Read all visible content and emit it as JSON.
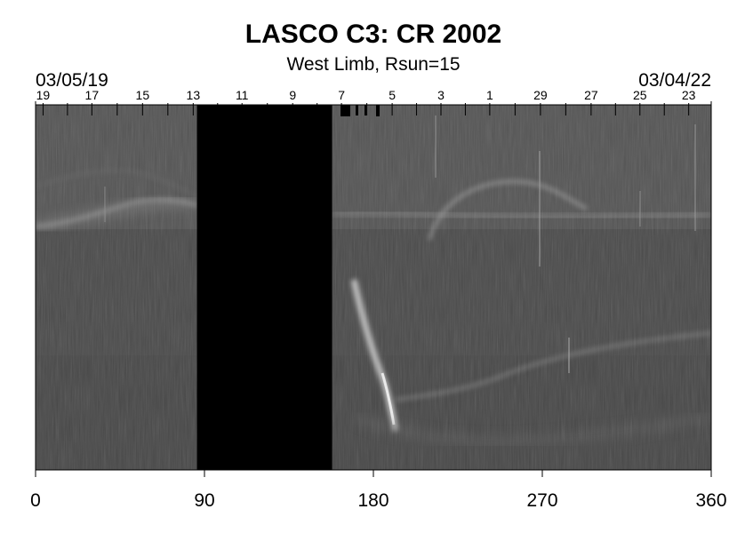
{
  "chart_data": {
    "type": "heatmap",
    "title": "LASCO C3: CR 2002",
    "subtitle": "West Limb, Rsun=15",
    "start_date": "03/05/19",
    "end_date": "03/04/22",
    "xlabel": "",
    "ylabel": "",
    "xlim": [
      0,
      360
    ],
    "x_ticks": [
      0,
      90,
      180,
      270,
      360
    ],
    "day_tick_labels": [
      {
        "label": "19",
        "x": 4
      },
      {
        "label": "17",
        "x": 30
      },
      {
        "label": "15",
        "x": 57
      },
      {
        "label": "13",
        "x": 84
      },
      {
        "label": "11",
        "x": 110
      },
      {
        "label": "9",
        "x": 137
      },
      {
        "label": "7",
        "x": 163
      },
      {
        "label": "5",
        "x": 190
      },
      {
        "label": "3",
        "x": 216
      },
      {
        "label": "1",
        "x": 242
      },
      {
        "label": "29",
        "x": 269
      },
      {
        "label": "27",
        "x": 296
      },
      {
        "label": "25",
        "x": 322
      },
      {
        "label": "23",
        "x": 348
      }
    ],
    "data_gaps": [
      [
        86,
        158
      ]
    ],
    "grid": false,
    "colormap": "grayscale",
    "colors": {
      "background": "#4a4a4a",
      "gap": "#000000",
      "streamer": "#9a9a9a"
    }
  }
}
